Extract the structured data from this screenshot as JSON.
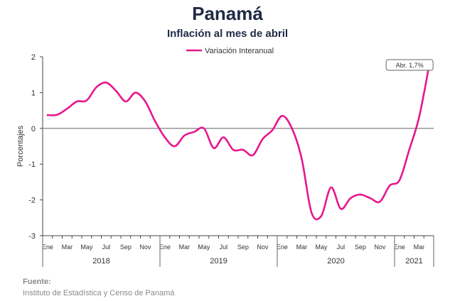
{
  "title": "Panamá",
  "subtitle": "Inflación al mes de abril",
  "source": {
    "heading": "Fuente:",
    "text": "Instituto de Estadística y Censo de Panamá"
  },
  "chart_data": {
    "type": "line",
    "title": "Panamá",
    "subtitle": "Inflación al mes de abril",
    "ylabel": "Porcentajes",
    "xlabel": "",
    "ylim": [
      -3,
      2
    ],
    "yticks": [
      2,
      1,
      0,
      -1,
      -2,
      -3
    ],
    "month_labels": [
      "Ene",
      "Mar",
      "May",
      "Jul",
      "Sep",
      "Nov",
      "Ene",
      "Mar",
      "May",
      "Jul",
      "Sep",
      "Nov",
      "Ene",
      "Mar",
      "May",
      "Jul",
      "Sep",
      "Nov",
      "Ene",
      "Mar"
    ],
    "year_labels": [
      "2018",
      "2019",
      "2020",
      "2021"
    ],
    "legend": "top-center",
    "grid": false,
    "annotation": {
      "text": "Abr. 1,7%",
      "at": "last-point"
    },
    "colors": {
      "series": "#e6178f",
      "text": "#1f2a44",
      "axis": "#444444"
    },
    "x": [
      "2018-01",
      "2018-02",
      "2018-03",
      "2018-04",
      "2018-05",
      "2018-06",
      "2018-07",
      "2018-08",
      "2018-09",
      "2018-10",
      "2018-11",
      "2018-12",
      "2019-01",
      "2019-02",
      "2019-03",
      "2019-04",
      "2019-05",
      "2019-06",
      "2019-07",
      "2019-08",
      "2019-09",
      "2019-10",
      "2019-11",
      "2019-12",
      "2020-01",
      "2020-02",
      "2020-03",
      "2020-04",
      "2020-05",
      "2020-06",
      "2020-07",
      "2020-08",
      "2020-09",
      "2020-10",
      "2020-11",
      "2020-12",
      "2021-01",
      "2021-02",
      "2021-03",
      "2021-04"
    ],
    "series": [
      {
        "name": "Variación Interanual",
        "values": [
          0.37,
          0.38,
          0.55,
          0.75,
          0.78,
          1.15,
          1.28,
          1.05,
          0.75,
          1.0,
          0.75,
          0.2,
          -0.25,
          -0.5,
          -0.2,
          -0.1,
          0.0,
          -0.55,
          -0.25,
          -0.6,
          -0.6,
          -0.75,
          -0.3,
          -0.05,
          0.35,
          0.0,
          -0.85,
          -2.35,
          -2.45,
          -1.65,
          -2.25,
          -1.95,
          -1.85,
          -1.95,
          -2.05,
          -1.6,
          -1.45,
          -0.6,
          0.3,
          1.7
        ]
      }
    ]
  }
}
